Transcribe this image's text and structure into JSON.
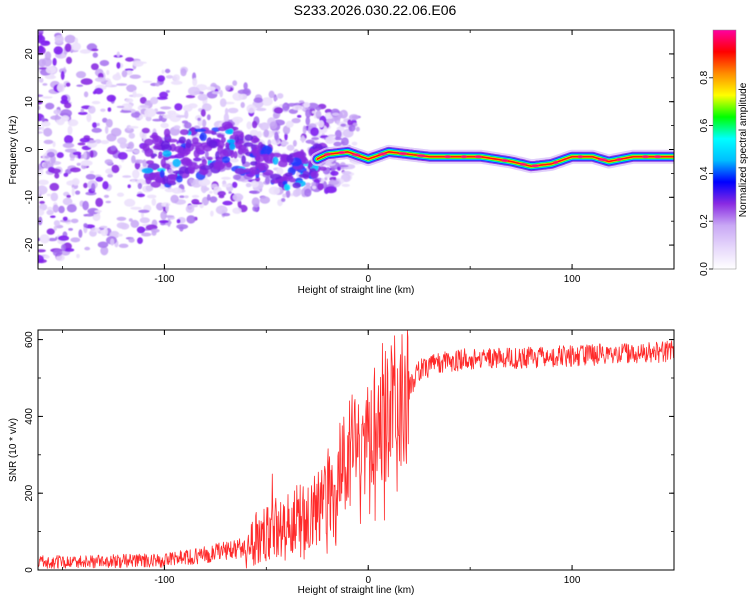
{
  "figure": {
    "title": "S233.2026.030.22.06.E06"
  },
  "chart_data": [
    {
      "type": "heatmap",
      "xlabel": "Height of straight line (km)",
      "ylabel": "Frequency (Hz)",
      "xlim": [
        -162,
        150
      ],
      "ylim": [
        -25,
        25
      ],
      "xticks": [
        -100,
        0,
        100
      ],
      "yticks": [
        -20,
        -10,
        0,
        10,
        20
      ],
      "colorbar": {
        "label": "Normalized spectral amplitude",
        "range": [
          0,
          1
        ],
        "ticks": [
          0.0,
          0.2,
          0.4,
          0.6,
          0.8
        ],
        "tick_labels": [
          "0.0",
          "0.2",
          "0.4",
          "0.6",
          "0.8"
        ],
        "colormap": [
          "#ffffff",
          "#e6d7fb",
          "#c9a8f5",
          "#8a2be2",
          "#0000ff",
          "#00bfff",
          "#00ffff",
          "#00ff00",
          "#ffff00",
          "#ff8c00",
          "#ff0000",
          "#ff00a0"
        ]
      },
      "noise_region": {
        "x_range": [
          -162,
          -30
        ],
        "frequency_spread_hz": [
          -25,
          25
        ]
      },
      "ridge": [
        {
          "x": -100,
          "y": -2
        },
        {
          "x": -85,
          "y": -1
        },
        {
          "x": -70,
          "y": 1
        },
        {
          "x": -60,
          "y": -1
        },
        {
          "x": -50,
          "y": -3
        },
        {
          "x": -40,
          "y": -5
        },
        {
          "x": -32,
          "y": -4
        },
        {
          "x": -25,
          "y": -2
        },
        {
          "x": -20,
          "y": -1
        },
        {
          "x": -10,
          "y": -0.5
        },
        {
          "x": 0,
          "y": -2
        },
        {
          "x": 10,
          "y": -0.5
        },
        {
          "x": 20,
          "y": -1
        },
        {
          "x": 30,
          "y": -1.5
        },
        {
          "x": 40,
          "y": -1.5
        },
        {
          "x": 55,
          "y": -1.5
        },
        {
          "x": 70,
          "y": -2.5
        },
        {
          "x": 80,
          "y": -3.5
        },
        {
          "x": 90,
          "y": -3
        },
        {
          "x": 100,
          "y": -1.5
        },
        {
          "x": 110,
          "y": -1.5
        },
        {
          "x": 118,
          "y": -2.5
        },
        {
          "x": 130,
          "y": -1.5
        },
        {
          "x": 150,
          "y": -1.5
        }
      ]
    },
    {
      "type": "line",
      "xlabel": "Height of straight line (km)",
      "ylabel": "SNR (10 * v/v)",
      "xlim": [
        -162,
        150
      ],
      "ylim": [
        0,
        625
      ],
      "xticks": [
        -100,
        0,
        100
      ],
      "yticks": [
        0,
        200,
        400,
        600
      ],
      "series": [
        {
          "name": "SNR",
          "color": "#ff2a2a",
          "trend": [
            {
              "x": -162,
              "y": 20
            },
            {
              "x": -100,
              "y": 25
            },
            {
              "x": -80,
              "y": 40
            },
            {
              "x": -60,
              "y": 60
            },
            {
              "x": -45,
              "y": 110
            },
            {
              "x": -35,
              "y": 130
            },
            {
              "x": -25,
              "y": 160
            },
            {
              "x": -15,
              "y": 250
            },
            {
              "x": -5,
              "y": 340
            },
            {
              "x": 0,
              "y": 360
            },
            {
              "x": 5,
              "y": 380
            },
            {
              "x": 10,
              "y": 400
            },
            {
              "x": 15,
              "y": 430
            },
            {
              "x": 20,
              "y": 470
            },
            {
              "x": 25,
              "y": 520
            },
            {
              "x": 35,
              "y": 540
            },
            {
              "x": 50,
              "y": 550
            },
            {
              "x": 70,
              "y": 552
            },
            {
              "x": 90,
              "y": 555
            },
            {
              "x": 110,
              "y": 560
            },
            {
              "x": 130,
              "y": 565
            },
            {
              "x": 150,
              "y": 570
            }
          ],
          "spikes": [
            {
              "x": -55,
              "y": 150
            },
            {
              "x": -47,
              "y": 250
            },
            {
              "x": -35,
              "y": 220
            },
            {
              "x": -20,
              "y": 280
            },
            {
              "x": -10,
              "y": 350
            },
            {
              "x": -3,
              "y": 380
            },
            {
              "x": 5,
              "y": 480
            },
            {
              "x": 7,
              "y": 590
            },
            {
              "x": 8,
              "y": 130
            },
            {
              "x": 13,
              "y": 610
            },
            {
              "x": 15,
              "y": 350
            }
          ]
        }
      ]
    }
  ]
}
